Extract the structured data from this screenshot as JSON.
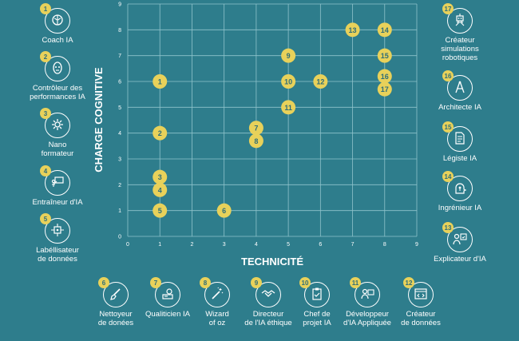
{
  "chart_data": {
    "type": "scatter",
    "title": "",
    "xlabel": "TECHNICITÉ",
    "ylabel": "CHARGE COGNITIVE",
    "xlim": [
      0,
      9
    ],
    "ylim": [
      0,
      9
    ],
    "xticks": [
      "0",
      "1",
      "2",
      "3",
      "4",
      "5",
      "6",
      "7",
      "8",
      "9"
    ],
    "yticks": [
      "0",
      "1",
      "2",
      "3",
      "4",
      "5",
      "6",
      "7",
      "8",
      "9"
    ],
    "grid": true,
    "marker_color": "#e8d15a",
    "points": [
      {
        "label": "1",
        "x": 1,
        "y": 6
      },
      {
        "label": "2",
        "x": 1,
        "y": 4
      },
      {
        "label": "3",
        "x": 1,
        "y": 2.3
      },
      {
        "label": "4",
        "x": 1,
        "y": 1.8
      },
      {
        "label": "5",
        "x": 1,
        "y": 1
      },
      {
        "label": "6",
        "x": 3,
        "y": 1
      },
      {
        "label": "7",
        "x": 4,
        "y": 4.2
      },
      {
        "label": "8",
        "x": 4,
        "y": 3.7
      },
      {
        "label": "9",
        "x": 5,
        "y": 7
      },
      {
        "label": "10",
        "x": 5,
        "y": 6
      },
      {
        "label": "11",
        "x": 5,
        "y": 5
      },
      {
        "label": "12",
        "x": 6,
        "y": 6
      },
      {
        "label": "13",
        "x": 7,
        "y": 8
      },
      {
        "label": "14",
        "x": 8,
        "y": 8
      },
      {
        "label": "15",
        "x": 8,
        "y": 7
      },
      {
        "label": "16",
        "x": 8,
        "y": 6.2
      },
      {
        "label": "17",
        "x": 8,
        "y": 5.7
      }
    ]
  },
  "roles": [
    {
      "num": "1",
      "label": "Coach IA",
      "icon": "brain-icon"
    },
    {
      "num": "2",
      "label": "Contrôleur des\nperformances IA",
      "icon": "robot-head-icon"
    },
    {
      "num": "3",
      "label": "Nano\nformateur",
      "icon": "gear-icon"
    },
    {
      "num": "4",
      "label": "Entraîneur d'IA",
      "icon": "presenter-icon"
    },
    {
      "num": "5",
      "label": "Labéllisateur\nde données",
      "icon": "circuit-icon"
    },
    {
      "num": "6",
      "label": "Nettoyeur\nde donées",
      "icon": "brush-icon"
    },
    {
      "num": "7",
      "label": "Qualiticien IA",
      "icon": "quality-icon"
    },
    {
      "num": "8",
      "label": "Wizard\nof oz",
      "icon": "wand-icon"
    },
    {
      "num": "9",
      "label": "Directeur\nde l'IA éthique",
      "icon": "handshake-icon"
    },
    {
      "num": "10",
      "label": "Chef de\nprojet IA",
      "icon": "clipboard-icon"
    },
    {
      "num": "11",
      "label": "Développeur\nd'IA Appliquée",
      "icon": "developer-icon"
    },
    {
      "num": "12",
      "label": "Créateur\nde données",
      "icon": "code-window-icon"
    },
    {
      "num": "13",
      "label": "Explicateur d'IA",
      "icon": "explain-icon"
    },
    {
      "num": "14",
      "label": "Ingrénieur IA",
      "icon": "circuit-head-icon"
    },
    {
      "num": "15",
      "label": "Légiste IA",
      "icon": "document-icon"
    },
    {
      "num": "16",
      "label": "Architecte IA",
      "icon": "compass-icon"
    },
    {
      "num": "17",
      "label": "Créateur\nsimulations\nrobotiques",
      "icon": "robot-icon"
    }
  ]
}
